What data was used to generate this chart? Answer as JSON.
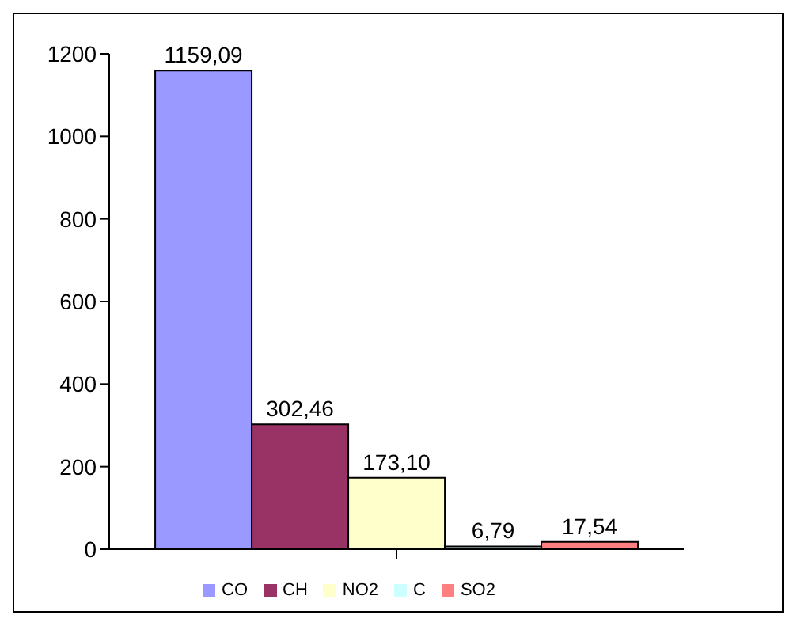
{
  "chart_data": {
    "type": "bar",
    "categories": [
      null
    ],
    "series": [
      {
        "name": "CO",
        "color": "#9999ff",
        "values": [
          1159.09
        ],
        "value_labels": [
          "1159,09"
        ]
      },
      {
        "name": "CH",
        "color": "#993366",
        "values": [
          302.46
        ],
        "value_labels": [
          "302,46"
        ]
      },
      {
        "name": "NO2",
        "color": "#ffffcc",
        "values": [
          173.1
        ],
        "value_labels": [
          "173,10"
        ]
      },
      {
        "name": "C",
        "color": "#ccffff",
        "values": [
          6.79
        ],
        "value_labels": [
          "6,79"
        ]
      },
      {
        "name": "SO2",
        "color": "#ff8080",
        "values": [
          17.54
        ],
        "value_labels": [
          "17,54"
        ]
      }
    ],
    "ylim": [
      0,
      1200
    ],
    "yticks": [
      0,
      200,
      400,
      600,
      800,
      1000,
      1200
    ],
    "grid": false,
    "legend": "bottom"
  }
}
